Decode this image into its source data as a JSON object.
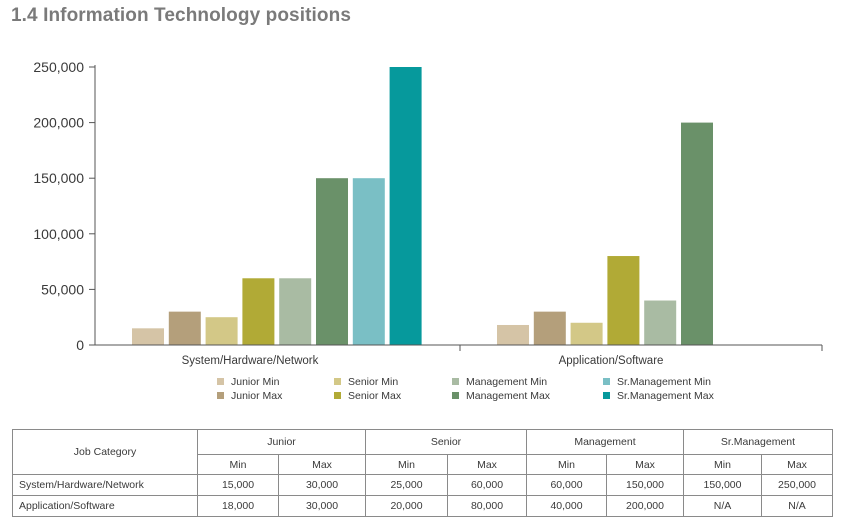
{
  "page_title": "1.4 Information Technology positions",
  "chart_data": {
    "type": "bar",
    "categories": [
      "System/Hardware/Network",
      "Application/Software"
    ],
    "series": [
      {
        "name": "Junior Min",
        "color": "#d5c4a6",
        "values": [
          15000,
          18000
        ]
      },
      {
        "name": "Junior Max",
        "color": "#b49f7b",
        "values": [
          30000,
          30000
        ]
      },
      {
        "name": "Senior Min",
        "color": "#d3c887",
        "values": [
          25000,
          20000
        ]
      },
      {
        "name": "Senior Max",
        "color": "#b1aa36",
        "values": [
          60000,
          80000
        ]
      },
      {
        "name": "Management Min",
        "color": "#a9bba3",
        "values": [
          60000,
          40000
        ]
      },
      {
        "name": "Management Max",
        "color": "#6a9169",
        "values": [
          150000,
          200000
        ]
      },
      {
        "name": "Sr.Management Min",
        "color": "#7abfc5",
        "values": [
          150000,
          null
        ]
      },
      {
        "name": "Sr.Management Max",
        "color": "#06999c",
        "values": [
          250000,
          null
        ]
      }
    ],
    "yticks": [
      "250,000",
      "200,000",
      "150,000",
      "100,000",
      "50,000",
      "0"
    ],
    "ylim": [
      0,
      250000
    ],
    "grid": false,
    "legend_position": "bottom",
    "title": "",
    "xlabel": "",
    "ylabel": ""
  },
  "legend_order": [
    0,
    2,
    4,
    6,
    1,
    3,
    5,
    7
  ],
  "table": {
    "corner_header": "Job Category",
    "group_headers": [
      "Junior",
      "Senior",
      "Management",
      "Sr.Management"
    ],
    "sub_headers": [
      "Min",
      "Max",
      "Min",
      "Max",
      "Min",
      "Max",
      "Min",
      "Max"
    ],
    "rows": [
      {
        "label": "System/Hardware/Network",
        "cells": [
          "15,000",
          "30,000",
          "25,000",
          "60,000",
          "60,000",
          "150,000",
          "150,000",
          "250,000"
        ]
      },
      {
        "label": "Application/Software",
        "cells": [
          "18,000",
          "30,000",
          "20,000",
          "80,000",
          "40,000",
          "200,000",
          "N/A",
          "N/A"
        ]
      }
    ]
  }
}
